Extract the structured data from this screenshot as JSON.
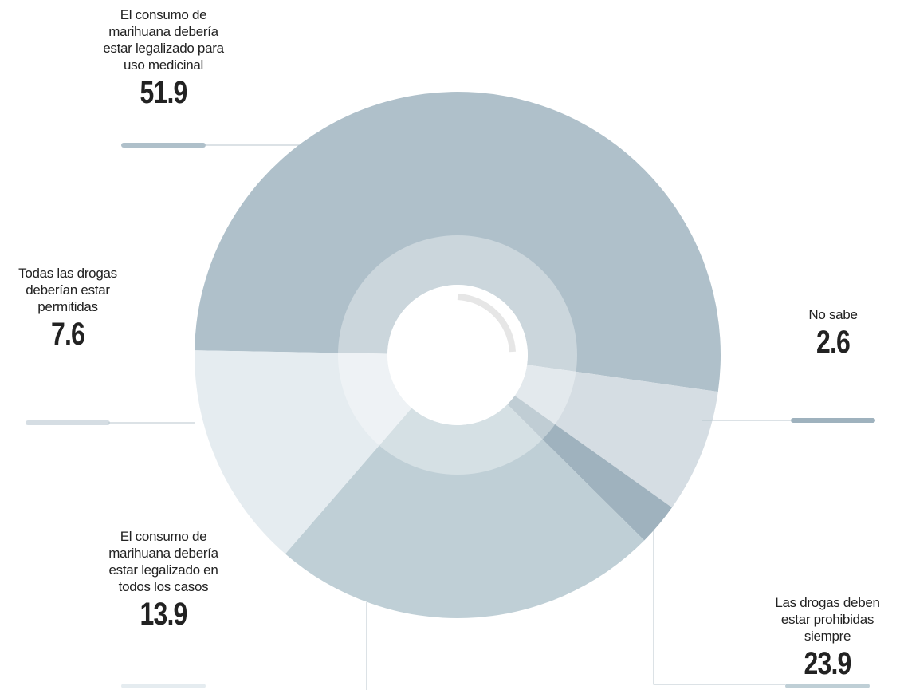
{
  "chart_data": {
    "type": "donut",
    "categories": [
      "El consumo de marihuana debería estar legalizado para uso medicinal",
      "Todas las drogas deberían estar permitidas",
      "No sabe",
      "Las drogas deben estar prohibidas siempre",
      "El consumo de marihuana debería estar legalizado en todos los casos"
    ],
    "values": [
      51.9,
      7.6,
      2.6,
      23.9,
      13.9
    ],
    "colors": [
      "#afc0ca",
      "#d5dde3",
      "#9fb2be",
      "#bfcfd6",
      "#e5ecf0"
    ]
  }
}
